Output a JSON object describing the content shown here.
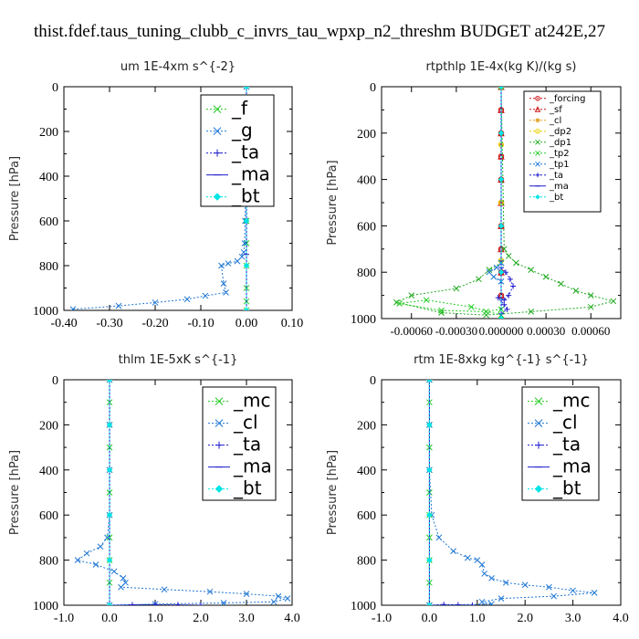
{
  "title": "thist.fdef.taus_tuning_clubb_c_invrs_tau_wpxp_n2_threshm  BUDGET at242E,27",
  "chart_data": [
    {
      "type": "line",
      "title": "um   1E-4xm s^{-2}",
      "ylabel": "Pressure [hPa]",
      "xlim": [
        -0.4,
        0.1
      ],
      "ylim": [
        1000,
        0
      ],
      "xticks": [
        "-0.40",
        "-0.30",
        "-0.20",
        "-0.10",
        "0.00",
        "0.10"
      ],
      "xtick_values": [
        -0.4,
        -0.3,
        -0.2,
        -0.1,
        0.0,
        0.1
      ],
      "yticks": [
        "0",
        "200",
        "400",
        "600",
        "800",
        "1000"
      ],
      "ytick_values": [
        0,
        200,
        400,
        600,
        800,
        1000
      ],
      "legend_position": "top-right",
      "series": [
        {
          "name": "_f",
          "color": "#22cc22",
          "marker": "x",
          "x": [
            0,
            0,
            0,
            0,
            0,
            0,
            0,
            0,
            0,
            0,
            0,
            0
          ],
          "y": [
            0,
            100,
            200,
            300,
            400,
            500,
            600,
            700,
            800,
            900,
            960,
            1000
          ]
        },
        {
          "name": "_g",
          "color": "#1f77d4",
          "marker": "x",
          "x": [
            0.0,
            0.0,
            -0.001,
            -0.002,
            -0.003,
            -0.004,
            -0.006,
            -0.01,
            -0.02,
            -0.04,
            -0.055,
            -0.05,
            -0.045,
            -0.09,
            -0.13,
            -0.2,
            -0.28,
            -0.38
          ],
          "y": [
            0,
            150,
            300,
            450,
            600,
            700,
            740,
            760,
            780,
            790,
            800,
            880,
            920,
            935,
            950,
            965,
            980,
            995
          ]
        },
        {
          "name": "_ta",
          "color": "#1a1acc",
          "marker": "+",
          "x": [
            0,
            0,
            0,
            0,
            0
          ],
          "y": [
            0,
            250,
            500,
            750,
            1000
          ]
        },
        {
          "name": "_ma",
          "color": "#1a1acc",
          "marker": "-",
          "x": [
            0,
            0,
            0
          ],
          "y": [
            0,
            500,
            1000
          ]
        },
        {
          "name": "_bt",
          "color": "#00e5e5",
          "marker": "diamond",
          "x": [
            0,
            0,
            0,
            0,
            0,
            0
          ],
          "y": [
            0,
            200,
            400,
            600,
            800,
            1000
          ]
        }
      ]
    },
    {
      "type": "line",
      "title": "rtpthlp   1E-4x(kg K)/(kg s)",
      "ylabel": "Pressure [hPa]",
      "xlim": [
        -0.0008,
        0.0008
      ],
      "ylim": [
        1000,
        0
      ],
      "xticks": [
        "-0.00060",
        "-0.00030",
        "0.000000",
        "0.00030",
        "0.00060"
      ],
      "xtick_values": [
        -0.0006,
        -0.0003,
        0.0,
        0.0003,
        0.0006
      ],
      "yticks": [
        "0",
        "200",
        "400",
        "600",
        "800",
        "1000"
      ],
      "ytick_values": [
        0,
        200,
        400,
        600,
        800,
        1000
      ],
      "legend_position": "top-right",
      "series": [
        {
          "name": "_forcing",
          "color": "#cc1111",
          "marker": "o",
          "x": [
            0,
            0,
            0,
            0,
            0,
            0,
            0,
            0,
            0,
            0,
            0
          ],
          "y": [
            0,
            100,
            200,
            300,
            400,
            500,
            600,
            700,
            800,
            900,
            1000
          ]
        },
        {
          "name": "_sf",
          "color": "#cc1111",
          "marker": "triangle",
          "x": [
            0,
            0,
            0,
            0,
            0,
            0,
            0,
            0,
            0,
            0,
            0
          ],
          "y": [
            0,
            100,
            200,
            300,
            400,
            500,
            600,
            700,
            800,
            900,
            1000
          ]
        },
        {
          "name": "_cl",
          "color": "#e0a020",
          "marker": "star",
          "x": [
            0,
            0,
            0,
            0,
            0
          ],
          "y": [
            0,
            250,
            500,
            750,
            1000
          ]
        },
        {
          "name": "_dp2",
          "color": "#e8d000",
          "marker": "o",
          "x": [
            0,
            0,
            0,
            0,
            0
          ],
          "y": [
            0,
            250,
            500,
            750,
            1000
          ]
        },
        {
          "name": "_dp1",
          "color": "#22aa22",
          "marker": "x",
          "x": [
            0,
            2e-05,
            5e-05,
            0.0001,
            0.0002,
            0.0003,
            0.0004,
            0.0005,
            0.0006,
            0.00075,
            0.0006,
            0.0002,
            -0.0001,
            -0.0004,
            -0.0007,
            -0.0006,
            -0.0003,
            -0.00015,
            -8e-05,
            0
          ],
          "y": [
            0,
            700,
            730,
            760,
            790,
            820,
            850,
            880,
            900,
            925,
            950,
            970,
            985,
            975,
            930,
            900,
            870,
            830,
            790,
            760
          ]
        },
        {
          "name": "_tp2",
          "color": "#22cc22",
          "marker": "x",
          "x": [
            0,
            -0.0001,
            -0.0004,
            -0.00068,
            -0.0005,
            -0.0002,
            0
          ],
          "y": [
            960,
            970,
            965,
            935,
            920,
            950,
            985
          ]
        },
        {
          "name": "_tp1",
          "color": "#1f77d4",
          "marker": "x",
          "x": [
            0,
            -3e-05,
            -8e-05,
            -5e-05,
            0
          ],
          "y": [
            760,
            780,
            800,
            820,
            840
          ]
        },
        {
          "name": "_ta",
          "color": "#1a1acc",
          "marker": "+",
          "x": [
            0,
            3e-05,
            6e-05,
            8e-05,
            5e-05,
            2e-05,
            -2e-05,
            2e-05,
            4e-05,
            0
          ],
          "y": [
            780,
            800,
            830,
            860,
            900,
            920,
            910,
            940,
            960,
            980
          ]
        },
        {
          "name": "_ma",
          "color": "#1a1acc",
          "marker": "-",
          "x": [
            0,
            0
          ],
          "y": [
            0,
            1000
          ]
        },
        {
          "name": "_bt",
          "color": "#00e5e5",
          "marker": "diamond",
          "x": [
            0,
            0,
            0,
            0,
            0,
            0
          ],
          "y": [
            0,
            200,
            400,
            600,
            800,
            1000
          ]
        }
      ]
    },
    {
      "type": "line",
      "title": "thlm   1E-5xK s^{-1}",
      "ylabel": "Pressure [hPa]",
      "xlim": [
        -1.0,
        4.0
      ],
      "ylim": [
        1000,
        0
      ],
      "xticks": [
        "-1.0",
        "0.0",
        "1.0",
        "2.0",
        "3.0",
        "4.0"
      ],
      "xtick_values": [
        -1.0,
        0.0,
        1.0,
        2.0,
        3.0,
        4.0
      ],
      "yticks": [
        "0",
        "200",
        "400",
        "600",
        "800",
        "1000"
      ],
      "ytick_values": [
        0,
        200,
        400,
        600,
        800,
        1000
      ],
      "legend_position": "top-right",
      "series": [
        {
          "name": "_mc",
          "color": "#22cc22",
          "marker": "x",
          "x": [
            0,
            0,
            0,
            0,
            0,
            0,
            0,
            0,
            0,
            0,
            0
          ],
          "y": [
            0,
            100,
            200,
            300,
            400,
            500,
            600,
            700,
            800,
            900,
            1000
          ]
        },
        {
          "name": "_cl",
          "color": "#1f77d4",
          "marker": "x",
          "x": [
            0.0,
            0.0,
            0.0,
            0.0,
            -0.05,
            -0.2,
            -0.5,
            -0.7,
            -0.3,
            0.1,
            0.3,
            0.35,
            0.25,
            1.2,
            2.2,
            3.0,
            3.7,
            3.9,
            3.6,
            2.5,
            1.0,
            0.0
          ],
          "y": [
            0,
            200,
            400,
            600,
            700,
            740,
            770,
            800,
            820,
            850,
            880,
            900,
            920,
            930,
            940,
            950,
            960,
            970,
            985,
            990,
            995,
            1000
          ]
        },
        {
          "name": "_ta",
          "color": "#1a1acc",
          "marker": "+",
          "x": [
            0,
            0.5,
            1.0,
            1.5,
            2.0
          ],
          "y": [
            1000,
            998,
            997,
            998,
            1000
          ]
        },
        {
          "name": "_ma",
          "color": "#1a1acc",
          "marker": "-",
          "x": [
            0,
            0
          ],
          "y": [
            0,
            1000
          ]
        },
        {
          "name": "_bt",
          "color": "#00e5e5",
          "marker": "diamond",
          "x": [
            0,
            0,
            0,
            0,
            0,
            0
          ],
          "y": [
            0,
            200,
            400,
            600,
            800,
            1000
          ]
        }
      ]
    },
    {
      "type": "line",
      "title": "rtm   1E-8xkg kg^{-1} s^{-1}",
      "ylabel": "Pressure [hPa]",
      "xlim": [
        -1.0,
        4.0
      ],
      "ylim": [
        1000,
        0
      ],
      "xticks": [
        "-1.0",
        "0.0",
        "1.0",
        "2.0",
        "3.0",
        "4.0"
      ],
      "xtick_values": [
        -1.0,
        0.0,
        1.0,
        2.0,
        3.0,
        4.0
      ],
      "yticks": [
        "0",
        "200",
        "400",
        "600",
        "800",
        "1000"
      ],
      "ytick_values": [
        0,
        200,
        400,
        600,
        800,
        1000
      ],
      "legend_position": "top-right",
      "series": [
        {
          "name": "_mc",
          "color": "#22cc22",
          "marker": "x",
          "x": [
            0,
            0,
            0,
            0,
            0,
            0,
            0,
            0,
            0,
            0,
            0
          ],
          "y": [
            0,
            100,
            200,
            300,
            400,
            500,
            600,
            700,
            800,
            900,
            1000
          ]
        },
        {
          "name": "_cl",
          "color": "#1f77d4",
          "marker": "x",
          "x": [
            0.0,
            0.0,
            0.0,
            0.05,
            0.2,
            0.5,
            0.8,
            1.0,
            1.1,
            1.15,
            1.3,
            1.6,
            2.0,
            2.5,
            3.0,
            3.45,
            2.6,
            1.5,
            1.1,
            1.3,
            0.0
          ],
          "y": [
            0,
            200,
            400,
            600,
            700,
            760,
            790,
            800,
            820,
            860,
            880,
            900,
            910,
            920,
            935,
            945,
            960,
            970,
            985,
            995,
            1000
          ]
        },
        {
          "name": "_ta",
          "color": "#1a1acc",
          "marker": "+",
          "x": [
            0,
            0.3,
            0.6,
            0.9
          ],
          "y": [
            1000,
            997,
            998,
            1000
          ]
        },
        {
          "name": "_ma",
          "color": "#1a1acc",
          "marker": "-",
          "x": [
            0,
            0
          ],
          "y": [
            0,
            1000
          ]
        },
        {
          "name": "_bt",
          "color": "#00e5e5",
          "marker": "diamond",
          "x": [
            0,
            0,
            0,
            0,
            0,
            0
          ],
          "y": [
            0,
            200,
            400,
            600,
            800,
            1000
          ]
        }
      ]
    }
  ]
}
